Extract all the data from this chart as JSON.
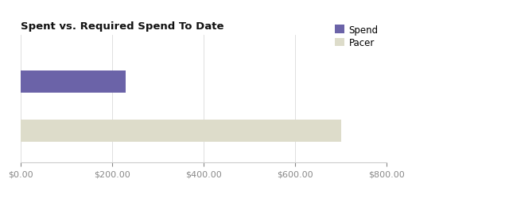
{
  "title": "Spent vs. Required Spend To Date",
  "categories": [
    "Spend",
    "Pacer"
  ],
  "values": [
    230,
    700
  ],
  "bar_colors": [
    "#6b63a8",
    "#dddcca"
  ],
  "xlim": [
    0,
    800
  ],
  "xticks": [
    0,
    200,
    400,
    600,
    800
  ],
  "legend_labels": [
    "Spend",
    "Pacer"
  ],
  "legend_colors": [
    "#6b63a8",
    "#dddcca"
  ],
  "background_color": "#ffffff",
  "title_fontsize": 9.5,
  "tick_fontsize": 8,
  "legend_fontsize": 8.5,
  "bar_height": 0.45
}
